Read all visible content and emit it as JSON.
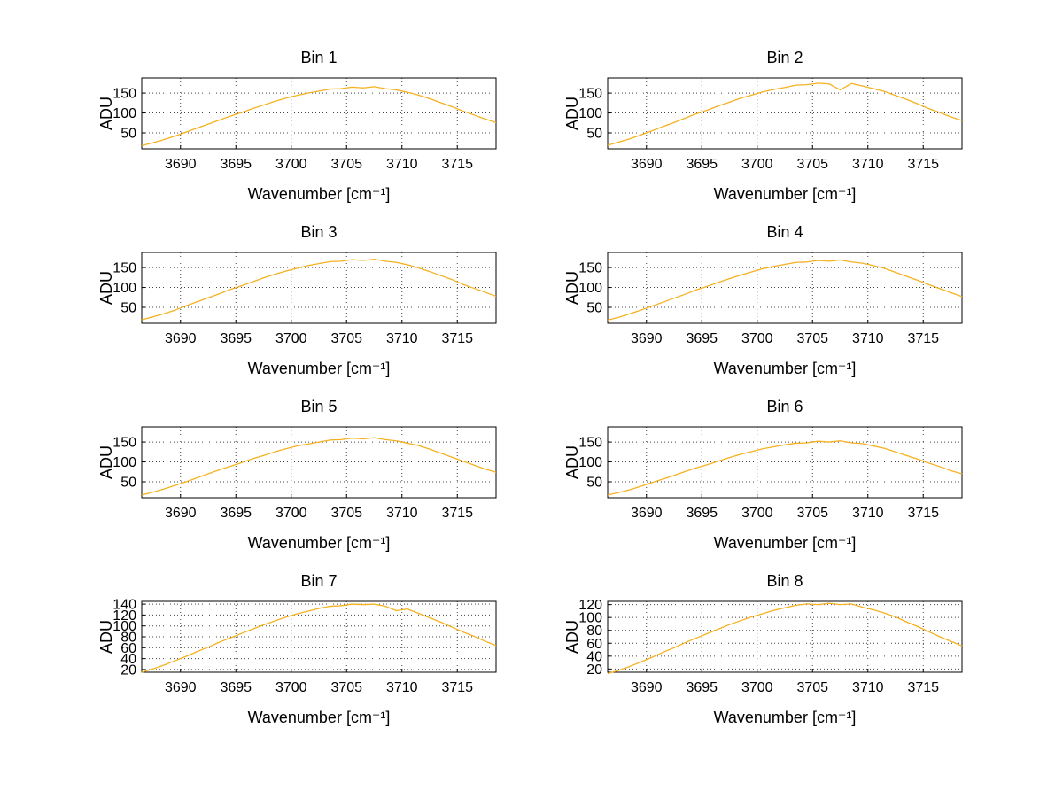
{
  "figure": {
    "background_color": "#ffffff",
    "axis_color": "#000000",
    "grid_color": "#444444",
    "text_color": "#000000"
  },
  "chart_data": {
    "type": "line",
    "layout": "4x2 grid of subplots",
    "xlabel": "Wavenumber [cm⁻¹]",
    "ylabel": "ADU",
    "xlim": [
      3686.5,
      3718.5
    ],
    "xticks": [
      3690,
      3695,
      3700,
      3705,
      3710,
      3715
    ],
    "grid": "dotted",
    "legend": "none",
    "line_color": "#F5B120",
    "x": [
      3686.5,
      3687.5,
      3688.5,
      3689.5,
      3690.5,
      3691.5,
      3692.5,
      3693.5,
      3694.5,
      3695.5,
      3696.5,
      3697.5,
      3698.5,
      3699.5,
      3700.5,
      3701.5,
      3702.5,
      3703.5,
      3704.5,
      3705.5,
      3706.5,
      3707.5,
      3708.5,
      3709.5,
      3710.5,
      3711.5,
      3712.5,
      3713.5,
      3714.5,
      3715.5,
      3716.5,
      3717.5,
      3718.5
    ],
    "subplots": [
      {
        "title": "Bin 1",
        "ylim": [
          10,
          188
        ],
        "yticks": [
          50,
          100,
          150
        ],
        "values": [
          18,
          25,
          33,
          42,
          52,
          62,
          72,
          82,
          92,
          101,
          111,
          120,
          129,
          137,
          144,
          150,
          155,
          160,
          161,
          165,
          163,
          166,
          161,
          158,
          152,
          145,
          136,
          126,
          116,
          105,
          95,
          85,
          76
        ]
      },
      {
        "title": "Bin 2",
        "ylim": [
          10,
          188
        ],
        "yticks": [
          50,
          100,
          150
        ],
        "values": [
          19,
          27,
          35,
          45,
          55,
          66,
          76,
          87,
          98,
          107,
          118,
          127,
          137,
          145,
          153,
          159,
          164,
          170,
          171,
          175,
          173,
          158,
          174,
          168,
          161,
          154,
          144,
          134,
          123,
          111,
          101,
          90,
          81
        ]
      },
      {
        "title": "Bin 3",
        "ylim": [
          10,
          188
        ],
        "yticks": [
          50,
          100,
          150
        ],
        "values": [
          19,
          26,
          34,
          43,
          54,
          64,
          74,
          84,
          95,
          104,
          114,
          124,
          133,
          141,
          148,
          155,
          160,
          165,
          166,
          170,
          168,
          171,
          166,
          163,
          157,
          149,
          140,
          130,
          120,
          108,
          98,
          88,
          78
        ]
      },
      {
        "title": "Bin 4",
        "ylim": [
          10,
          188
        ],
        "yticks": [
          50,
          100,
          150
        ],
        "values": [
          18,
          25,
          34,
          43,
          53,
          63,
          73,
          83,
          94,
          103,
          113,
          122,
          131,
          139,
          147,
          153,
          158,
          163,
          164,
          168,
          166,
          169,
          164,
          161,
          155,
          148,
          138,
          128,
          118,
          107,
          97,
          87,
          77
        ]
      },
      {
        "title": "Bin 5",
        "ylim": [
          10,
          188
        ],
        "yticks": [
          50,
          100,
          150
        ],
        "values": [
          17,
          24,
          32,
          41,
          50,
          60,
          70,
          80,
          89,
          98,
          108,
          116,
          125,
          133,
          140,
          145,
          150,
          155,
          156,
          160,
          158,
          161,
          156,
          153,
          147,
          141,
          132,
          122,
          112,
          102,
          92,
          82,
          74
        ]
      },
      {
        "title": "Bin 6",
        "ylim": [
          10,
          188
        ],
        "yticks": [
          50,
          100,
          150
        ],
        "values": [
          17,
          23,
          30,
          39,
          48,
          57,
          66,
          76,
          85,
          93,
          102,
          111,
          119,
          126,
          133,
          138,
          143,
          147,
          148,
          152,
          150,
          153,
          148,
          146,
          140,
          134,
          125,
          116,
          107,
          97,
          88,
          78,
          70
        ]
      },
      {
        "title": "Bin 7",
        "ylim": [
          15,
          145
        ],
        "yticks": [
          20,
          40,
          60,
          80,
          100,
          120,
          140
        ],
        "values": [
          15,
          21,
          28,
          36,
          44,
          53,
          61,
          70,
          78,
          86,
          94,
          102,
          109,
          116,
          122,
          127,
          132,
          136,
          137,
          140,
          139,
          140,
          136,
          128,
          131,
          123,
          115,
          107,
          98,
          89,
          81,
          72,
          64
        ]
      },
      {
        "title": "Bin 8",
        "ylim": [
          15,
          125
        ],
        "yticks": [
          20,
          40,
          60,
          80,
          100,
          120
        ],
        "values": [
          13,
          18,
          24,
          31,
          38,
          46,
          53,
          61,
          68,
          75,
          82,
          89,
          95,
          101,
          106,
          111,
          115,
          119,
          121,
          120,
          122,
          120,
          121,
          116,
          112,
          107,
          101,
          93,
          86,
          78,
          70,
          63,
          56
        ]
      }
    ]
  }
}
